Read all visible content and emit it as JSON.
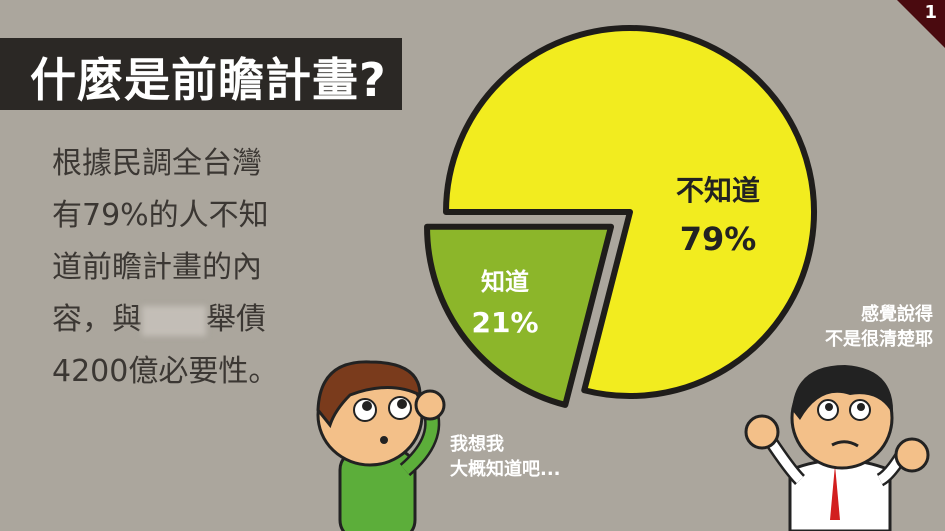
{
  "page_number": "1",
  "title": "什麼是前瞻計畫?",
  "body_lines": [
    "根據民調全台灣",
    "有79%的人不知",
    "道前瞻計畫的內",
    "容，與",
    "舉債",
    "4200億必要性。"
  ],
  "speech": {
    "left_lines": [
      "我想我",
      "大概知道吧..."
    ],
    "right_lines": [
      "感覺說得",
      "不是很清楚耶"
    ]
  },
  "chart_data": {
    "type": "pie",
    "slices": [
      {
        "label": "不知道",
        "value": 79,
        "value_label": "79%",
        "color": "#f2ec1f"
      },
      {
        "label": "知道",
        "value": 21,
        "value_label": "21%",
        "color": "#8cb62a",
        "exploded": true
      }
    ]
  }
}
